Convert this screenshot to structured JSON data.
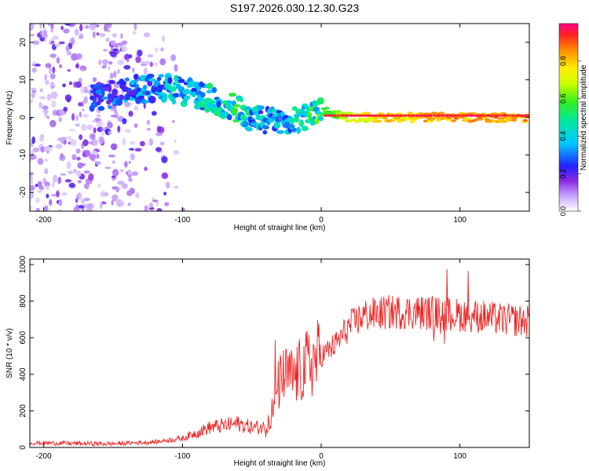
{
  "title": "S197.2026.030.12.30.G23",
  "chart_data": [
    {
      "type": "heatmap",
      "name": "spectrogram",
      "xlabel": "Height of straight line (km)",
      "ylabel": "Frequency (Hz)",
      "xlim": [
        -210,
        150
      ],
      "ylim": [
        -25,
        25
      ],
      "xticks": [
        -200,
        -100,
        0,
        100
      ],
      "yticks": [
        -20,
        -10,
        0,
        10,
        20
      ],
      "colorbar": {
        "label": "Normalized spectral amplitude",
        "range": [
          0,
          1
        ],
        "ticks": [
          "0.0",
          "0.2",
          "0.4",
          "0.6",
          "0.8"
        ],
        "tick_values": [
          0.0,
          0.2,
          0.4,
          0.6,
          0.8
        ]
      },
      "ridge": {
        "x": [
          -160,
          -140,
          -120,
          -100,
          -80,
          -60,
          -50,
          -40,
          -30,
          -20,
          -10,
          0,
          10,
          20,
          50,
          100,
          150
        ],
        "y": [
          5,
          7,
          8,
          7,
          5,
          2,
          0,
          -1,
          -1,
          0,
          0,
          2,
          1,
          0,
          0,
          0,
          0
        ],
        "amplitude": [
          0.3,
          0.35,
          0.4,
          0.45,
          0.5,
          0.55,
          0.45,
          0.4,
          0.45,
          0.5,
          0.55,
          0.6,
          0.65,
          0.75,
          0.85,
          0.9,
          0.9
        ]
      }
    },
    {
      "type": "line",
      "name": "snr",
      "xlabel": "Height of straight line (km)",
      "ylabel": "SNR (10 * v/v)",
      "xlim": [
        -210,
        150
      ],
      "ylim": [
        0,
        1030
      ],
      "xticks": [
        -200,
        -100,
        0,
        100
      ],
      "yticks": [
        0,
        200,
        400,
        600,
        800,
        1000
      ],
      "color": "#ee2222",
      "series": [
        {
          "name": "SNR",
          "x": [
            -210,
            -180,
            -150,
            -120,
            -100,
            -90,
            -80,
            -70,
            -60,
            -50,
            -40,
            -35,
            -30,
            -25,
            -20,
            -10,
            0,
            10,
            20,
            30,
            50,
            70,
            90,
            110,
            130,
            150
          ],
          "y": [
            25,
            22,
            20,
            30,
            50,
            80,
            110,
            120,
            130,
            110,
            110,
            200,
            360,
            390,
            380,
            450,
            500,
            560,
            660,
            720,
            740,
            740,
            730,
            720,
            700,
            690
          ]
        }
      ]
    }
  ]
}
